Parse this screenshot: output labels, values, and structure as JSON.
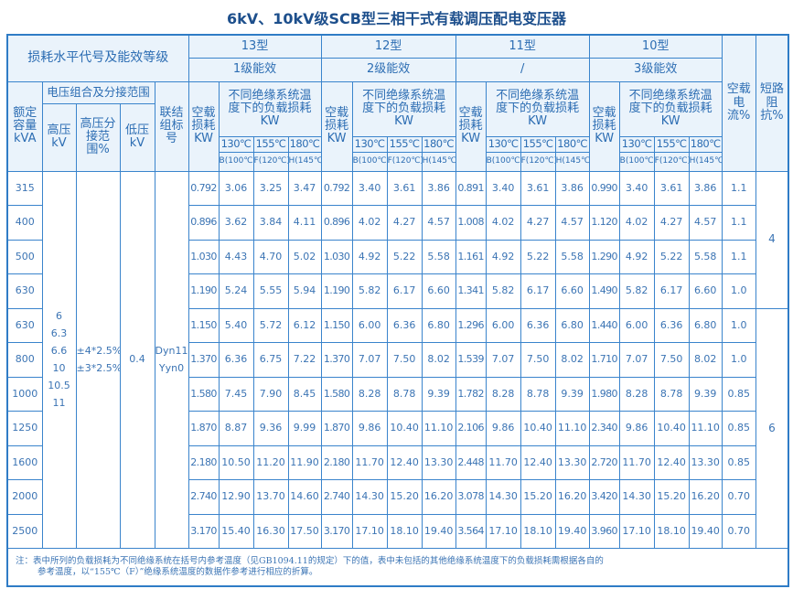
{
  "title": "6kV、10kV级SCB型三相干式有载调压配电变压器",
  "header": {
    "loss_level": "损耗水平代号及能效等级",
    "models": [
      {
        "type": "13型",
        "grade": "1级能效"
      },
      {
        "type": "12型",
        "grade": "2级能效"
      },
      {
        "type": "11型",
        "grade": "/"
      },
      {
        "type": "10型",
        "grade": "3级能效"
      }
    ],
    "no_load_current": "空载电流%",
    "short_circuit_impedance": "短路阻抗%",
    "rated_capacity": "额定容量kVA",
    "voltage_group": "电压组合及分接范围",
    "hv": "高压kV",
    "hv_tap": "高压分接范围%",
    "lv": "低压kV",
    "vector_group": "联结组标号",
    "no_load_loss": "空载损耗KW",
    "load_loss": "不同绝缘系统温度下的负载损耗KW",
    "temps": [
      "130℃",
      "155℃",
      "180℃"
    ],
    "classes": [
      "B(100℃)",
      "F(120℃)",
      "H(145℃)"
    ]
  },
  "common": {
    "hv_values": [
      "6",
      "6.3",
      "6.6",
      "10",
      "10.5",
      "11"
    ],
    "tap_values": [
      "±4*2.5%",
      "±3*2.5%"
    ],
    "lv_value": "0.4",
    "vector_values": [
      "Dyn11",
      "Yyn0"
    ],
    "impedance_groups": [
      {
        "value": "4",
        "rows": 4
      },
      {
        "value": "6",
        "rows": 7
      }
    ]
  },
  "rows": [
    {
      "cap": "315",
      "m": [
        [
          "0.792",
          "3.06",
          "3.25",
          "3.47"
        ],
        [
          "0.792",
          "3.40",
          "3.61",
          "3.86"
        ],
        [
          "0.891",
          "3.40",
          "3.61",
          "3.86"
        ],
        [
          "0.990",
          "3.40",
          "3.61",
          "3.86"
        ]
      ],
      "i0": "1.1"
    },
    {
      "cap": "400",
      "m": [
        [
          "0.896",
          "3.62",
          "3.84",
          "4.11"
        ],
        [
          "0.896",
          "4.02",
          "4.27",
          "4.57"
        ],
        [
          "1.008",
          "4.02",
          "4.27",
          "4.57"
        ],
        [
          "1.120",
          "4.02",
          "4.27",
          "4.57"
        ]
      ],
      "i0": "1.1"
    },
    {
      "cap": "500",
      "m": [
        [
          "1.030",
          "4.43",
          "4.70",
          "5.02"
        ],
        [
          "1.030",
          "4.92",
          "5.22",
          "5.58"
        ],
        [
          "1.161",
          "4.92",
          "5.22",
          "5.58"
        ],
        [
          "1.290",
          "4.92",
          "5.22",
          "5.58"
        ]
      ],
      "i0": "1.1"
    },
    {
      "cap": "630",
      "m": [
        [
          "1.190",
          "5.24",
          "5.55",
          "5.94"
        ],
        [
          "1.190",
          "5.82",
          "6.17",
          "6.60"
        ],
        [
          "1.341",
          "5.82",
          "6.17",
          "6.60"
        ],
        [
          "1.490",
          "5.82",
          "6.17",
          "6.60"
        ]
      ],
      "i0": "1.0"
    },
    {
      "cap": "630",
      "m": [
        [
          "1.150",
          "5.40",
          "5.72",
          "6.12"
        ],
        [
          "1.150",
          "6.00",
          "6.36",
          "6.80"
        ],
        [
          "1.296",
          "6.00",
          "6.36",
          "6.80"
        ],
        [
          "1.440",
          "6.00",
          "6.36",
          "6.80"
        ]
      ],
      "i0": "1.0"
    },
    {
      "cap": "800",
      "m": [
        [
          "1.370",
          "6.36",
          "6.75",
          "7.22"
        ],
        [
          "1.370",
          "7.07",
          "7.50",
          "8.02"
        ],
        [
          "1.539",
          "7.07",
          "7.50",
          "8.02"
        ],
        [
          "1.710",
          "7.07",
          "7.50",
          "8.02"
        ]
      ],
      "i0": "1.0"
    },
    {
      "cap": "1000",
      "m": [
        [
          "1.580",
          "7.45",
          "7.90",
          "8.45"
        ],
        [
          "1.580",
          "8.28",
          "8.78",
          "9.39"
        ],
        [
          "1.782",
          "8.28",
          "8.78",
          "9.39"
        ],
        [
          "1.980",
          "8.28",
          "8.78",
          "9.39"
        ]
      ],
      "i0": "0.85"
    },
    {
      "cap": "1250",
      "m": [
        [
          "1.870",
          "8.87",
          "9.36",
          "9.99"
        ],
        [
          "1.870",
          "9.86",
          "10.40",
          "11.10"
        ],
        [
          "2.106",
          "9.86",
          "10.40",
          "11.10"
        ],
        [
          "2.340",
          "9.86",
          "10.40",
          "11.10"
        ]
      ],
      "i0": "0.85"
    },
    {
      "cap": "1600",
      "m": [
        [
          "2.180",
          "10.50",
          "11.20",
          "11.90"
        ],
        [
          "2.180",
          "11.70",
          "12.40",
          "13.30"
        ],
        [
          "2.448",
          "11.70",
          "12.40",
          "13.30"
        ],
        [
          "2.720",
          "11.70",
          "12.40",
          "13.30"
        ]
      ],
      "i0": "0.85"
    },
    {
      "cap": "2000",
      "m": [
        [
          "2.740",
          "12.90",
          "13.70",
          "14.60"
        ],
        [
          "2.740",
          "14.30",
          "15.20",
          "16.20"
        ],
        [
          "3.078",
          "14.30",
          "15.20",
          "16.20"
        ],
        [
          "3.420",
          "14.30",
          "15.20",
          "16.20"
        ]
      ],
      "i0": "0.70"
    },
    {
      "cap": "2500",
      "m": [
        [
          "3.170",
          "15.40",
          "16.30",
          "17.50"
        ],
        [
          "3.170",
          "17.10",
          "18.10",
          "19.40"
        ],
        [
          "3.564",
          "17.10",
          "18.10",
          "19.40"
        ],
        [
          "3.960",
          "17.10",
          "18.10",
          "19.40"
        ]
      ],
      "i0": "0.70"
    }
  ],
  "note_line1": "注：表中所列的负载损耗为不同绝缘系统在括号内参考温度（见GB1094.11的规定）下的值，表中未包括的其他绝缘系统温度下的负载损耗需根据各自的",
  "note_line2": "参考温度，以“155℃（F）”绝缘系统温度的数据作参考进行相应的折算。",
  "colors": {
    "line": "#2f7cc6",
    "header_bg": "#eaf3fb",
    "text": "#2c6db3",
    "title": "#1d4f8c"
  }
}
